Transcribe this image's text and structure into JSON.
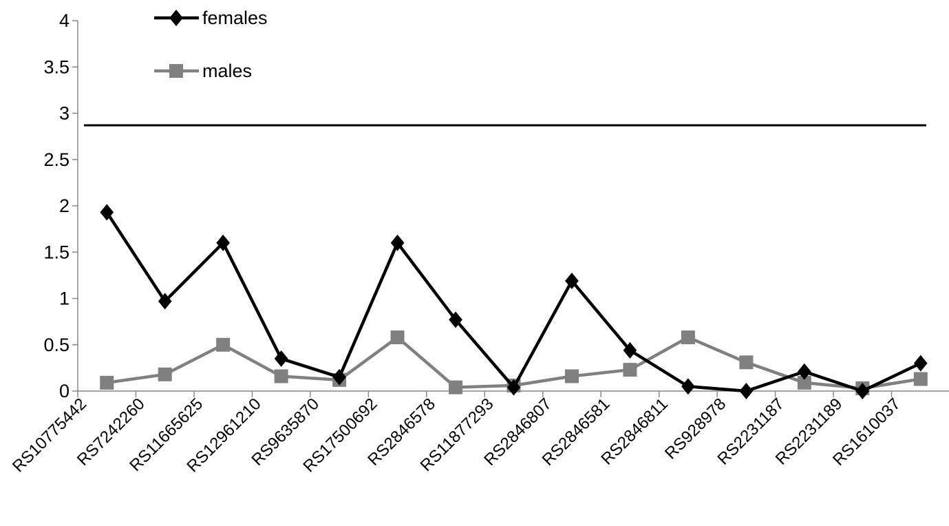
{
  "chart_data": {
    "type": "line",
    "categories": [
      "RS10775442",
      "RS7242260",
      "RS11665625",
      "RS12961210",
      "RS9635870",
      "RS17500692",
      "RS2846578",
      "RS11877293",
      "RS2846807",
      "RS2846581",
      "RS2846811",
      "RS928978",
      "RS2231187",
      "RS2231189",
      "RS1610037"
    ],
    "series": [
      {
        "name": "females",
        "color": "#000000",
        "marker": "diamond",
        "values": [
          1.93,
          0.97,
          1.6,
          0.35,
          0.15,
          1.6,
          0.77,
          0.04,
          1.19,
          0.44,
          0.05,
          0.0,
          0.21,
          0.0,
          0.3
        ]
      },
      {
        "name": "males",
        "color": "#808080",
        "marker": "square",
        "values": [
          0.09,
          0.18,
          0.5,
          0.16,
          0.12,
          0.58,
          0.04,
          0.06,
          0.16,
          0.23,
          0.58,
          0.31,
          0.09,
          0.03,
          0.13
        ]
      }
    ],
    "threshold": 2.87,
    "ylim": [
      0,
      4
    ],
    "yticks": [
      "0",
      "0.5",
      "1",
      "1.5",
      "2",
      "2.5",
      "3",
      "3.5",
      "4"
    ],
    "yticks_values": [
      0,
      0.5,
      1,
      1.5,
      2,
      2.5,
      3,
      3.5,
      4
    ],
    "legend_position": "top-left",
    "title": "",
    "xlabel": "",
    "ylabel": ""
  }
}
